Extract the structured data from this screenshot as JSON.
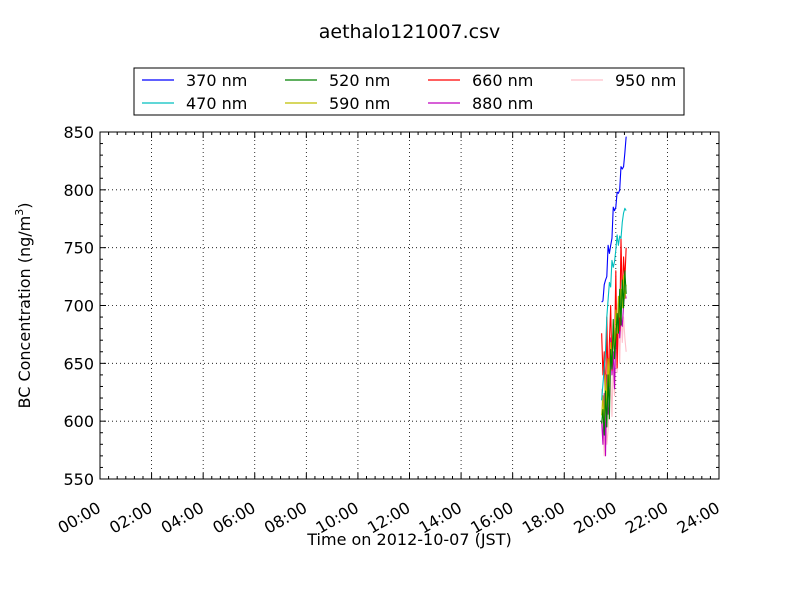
{
  "chart_data": {
    "type": "line",
    "title": "aethalo121007.csv",
    "xlabel": "Time on 2012-10-07 (JST)",
    "ylabel": "BC Concentration (ng/m³)",
    "ylabel_base": "BC Concentration (ng/m",
    "ylabel_sup": "3",
    "ylabel_tail": ")",
    "xlim": [
      "00:00",
      "24:00"
    ],
    "ylim": [
      550,
      850
    ],
    "x_ticks": [
      "00:00",
      "02:00",
      "04:00",
      "06:00",
      "08:00",
      "10:00",
      "12:00",
      "14:00",
      "16:00",
      "18:00",
      "20:00",
      "22:00",
      "24:00"
    ],
    "y_ticks": [
      550,
      600,
      650,
      700,
      750,
      800,
      850
    ],
    "grid": true,
    "legend_position": "top",
    "x": [
      "19:27",
      "19:30",
      "19:33",
      "19:36",
      "19:39",
      "19:42",
      "19:45",
      "19:48",
      "19:51",
      "19:54",
      "19:57",
      "20:00",
      "20:03",
      "20:06",
      "20:09",
      "20:12",
      "20:15",
      "20:18",
      "20:21",
      "20:24"
    ],
    "series": [
      {
        "name": "370 nm",
        "color": "#0000ff",
        "values": [
          703,
          704,
          718,
          722,
          725,
          752,
          745,
          752,
          758,
          785,
          782,
          785,
          798,
          797,
          800,
          820,
          818,
          820,
          832,
          846
        ]
      },
      {
        "name": "470 nm",
        "color": "#00bfbf",
        "values": [
          618,
          632,
          646,
          661,
          690,
          705,
          720,
          716,
          739,
          733,
          738,
          748,
          761,
          752,
          760,
          758,
          772,
          780,
          784,
          782
        ]
      },
      {
        "name": "520 nm",
        "color": "#008000",
        "values": [
          598,
          610,
          588,
          626,
          595,
          640,
          602,
          662,
          645,
          688,
          654,
          672,
          693,
          676,
          714,
          683,
          722,
          698,
          730,
          710
        ]
      },
      {
        "name": "590 nm",
        "color": "#bfbf00",
        "values": [
          605,
          622,
          598,
          640,
          612,
          654,
          630,
          668,
          648,
          682,
          662,
          696,
          676,
          708,
          690,
          714,
          698,
          726,
          706,
          718
        ]
      },
      {
        "name": "660 nm",
        "color": "#ff0000",
        "values": [
          676,
          640,
          660,
          612,
          690,
          628,
          668,
          700,
          644,
          682,
          662,
          730,
          646,
          702,
          678,
          758,
          702,
          742,
          722,
          750
        ]
      },
      {
        "name": "880 nm",
        "color": "#bf00bf",
        "values": [
          600,
          580,
          624,
          570,
          640,
          606,
          614,
          672,
          640,
          660,
          628,
          680,
          654,
          698,
          672,
          690,
          682,
          700,
          712,
          706
        ]
      },
      {
        "name": "950 nm",
        "color": "#ffc0cb",
        "values": [
          628,
          600,
          570,
          612,
          580,
          592,
          620,
          640,
          604,
          650,
          622,
          660,
          642,
          680,
          650,
          700,
          668,
          690,
          672,
          660
        ]
      }
    ]
  }
}
